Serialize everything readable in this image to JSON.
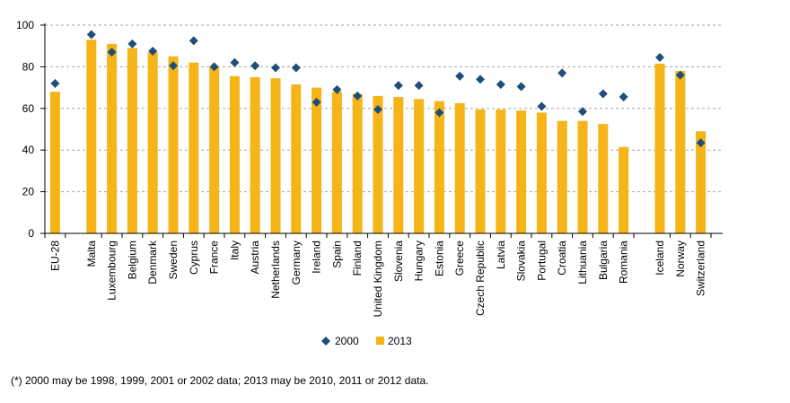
{
  "chart_data": {
    "type": "bar",
    "categories": [
      "EU-28",
      "Malta",
      "Luxembourg",
      "Belgium",
      "Denmark",
      "Sweden",
      "Cyprus",
      "France",
      "Italy",
      "Austria",
      "Netherlands",
      "Germany",
      "Ireland",
      "Spain",
      "Finland",
      "United Kingdom",
      "Slovenia",
      "Hungary",
      "Estonia",
      "Greece",
      "Czech Republic",
      "Latvia",
      "Slovakia",
      "Portugal",
      "Croatia",
      "Lithuania",
      "Bulgaria",
      "Romania",
      "Iceland",
      "Norway",
      "Switzerland"
    ],
    "gap_after": [
      "EU-28",
      "Romania"
    ],
    "series": [
      {
        "name": "2000",
        "marker": "diamond",
        "color": "#1f4e79",
        "values": [
          72,
          95.5,
          87,
          91,
          87.5,
          80.5,
          92.5,
          80,
          82,
          80.5,
          79.5,
          79.5,
          63,
          69,
          66,
          59.5,
          71,
          71,
          58,
          75.5,
          74,
          71.5,
          70.5,
          61,
          77,
          58.5,
          67,
          65.5,
          84.5,
          76,
          43.5
        ]
      },
      {
        "name": "2013",
        "marker": "bar",
        "color": "#f5b417",
        "values": [
          68,
          93,
          91,
          89,
          87,
          85,
          82,
          80,
          75.5,
          75,
          74.5,
          71.5,
          70,
          68,
          67,
          66,
          65.5,
          64.5,
          63.5,
          62.5,
          59.5,
          59.5,
          59,
          58,
          54,
          54,
          52.5,
          41.5,
          81.5,
          78,
          49
        ]
      }
    ],
    "y_ticks": [
      0,
      20,
      40,
      60,
      80,
      100
    ],
    "ylim": [
      0,
      100
    ],
    "grid": "horizontal dashed",
    "legend_position": "bottom-center"
  },
  "legend": {
    "items": [
      {
        "label": "2000",
        "marker": "diamond",
        "color": "#1f4e79"
      },
      {
        "label": "2013",
        "marker": "square",
        "color": "#f5b417"
      }
    ]
  },
  "footnote": "(*) 2000 may be 1998, 1999, 2001 or 2002 data; 2013 may be 2010, 2011 or 2012 data."
}
